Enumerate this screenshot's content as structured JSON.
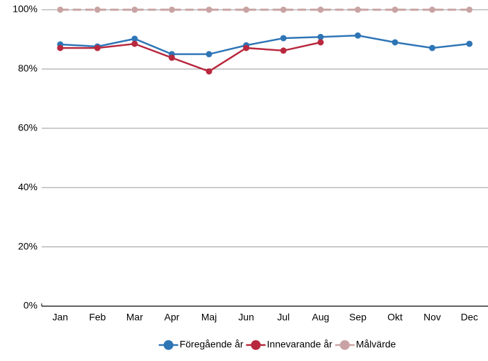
{
  "chart_data": {
    "type": "line",
    "categories": [
      "Jan",
      "Feb",
      "Mar",
      "Apr",
      "Maj",
      "Jun",
      "Jul",
      "Aug",
      "Sep",
      "Okt",
      "Nov",
      "Dec"
    ],
    "series": [
      {
        "name": "Föregående år",
        "color": "#2e75b6",
        "values": [
          88.3,
          87.6,
          90.2,
          85,
          85,
          88,
          90.4,
          90.8,
          91.3,
          89,
          87.1,
          88.5
        ]
      },
      {
        "name": "Innevarande år",
        "color": "#b8283e",
        "values": [
          87.1,
          87.1,
          88.5,
          83.8,
          79.2,
          87.1,
          86.2,
          89,
          null,
          null,
          null,
          null
        ]
      },
      {
        "name": "Målvärde",
        "color": "#c9a3a3",
        "dashed": true,
        "values": [
          100,
          100,
          100,
          100,
          100,
          100,
          100,
          100,
          100,
          100,
          100,
          100
        ]
      }
    ],
    "ylim": [
      0,
      100
    ],
    "yticks": [
      {
        "value": 0,
        "label": "0%"
      },
      {
        "value": 20,
        "label": "20%"
      },
      {
        "value": 40,
        "label": "40%"
      },
      {
        "value": 60,
        "label": "60%"
      },
      {
        "value": 80,
        "label": "80%"
      },
      {
        "value": 100,
        "label": "100%"
      }
    ],
    "grid": true,
    "legend": "bottom"
  }
}
